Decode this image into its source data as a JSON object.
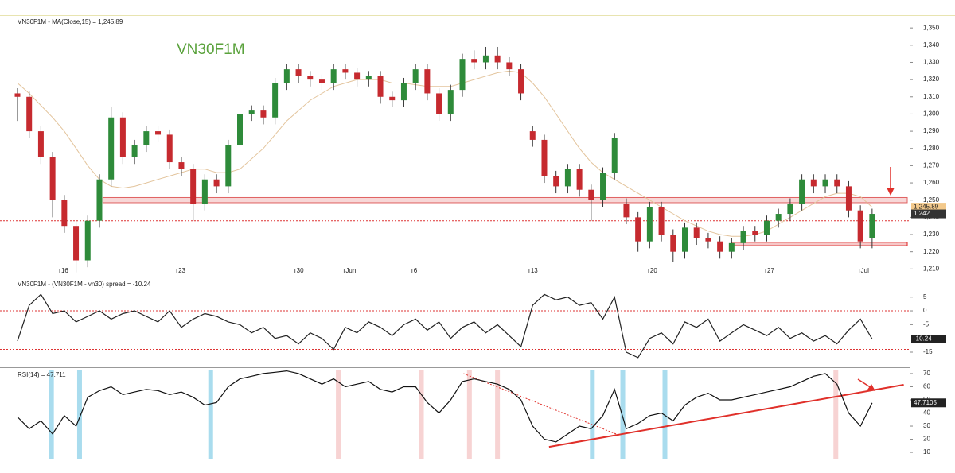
{
  "chart_data": [
    {
      "type": "candlestick",
      "title": "VN30F1M - MA(Close,15) = 1,245.89",
      "watermark": "VN30F1M",
      "up_color": "#2e8b3a",
      "down_color": "#c62a2f",
      "x": [
        0,
        1,
        2,
        3,
        4,
        5,
        6,
        7,
        8,
        9,
        10,
        11,
        12,
        13,
        14,
        15,
        16,
        17,
        18,
        19,
        20,
        21,
        22,
        23,
        24,
        25,
        26,
        27,
        28,
        29,
        30,
        31,
        32,
        33,
        34,
        35,
        36,
        37,
        38,
        39,
        40,
        41,
        42,
        43,
        44,
        45,
        46,
        47,
        48,
        49,
        50,
        51,
        52,
        53,
        54,
        55,
        56,
        57,
        58,
        59,
        60,
        61,
        62,
        63,
        64,
        65,
        66,
        67,
        68,
        69,
        70,
        71,
        72,
        73
      ],
      "open": [
        1312,
        1310,
        1290,
        1275,
        1250,
        1235,
        1215,
        1238,
        1262,
        1298,
        1275,
        1282,
        1290,
        1288,
        1272,
        1268,
        1248,
        1262,
        1258,
        1282,
        1300,
        1302,
        1298,
        1318,
        1326,
        1322,
        1320,
        1318,
        1326,
        1324,
        1320,
        1322,
        1310,
        1308,
        1318,
        1326,
        1312,
        1300,
        1314,
        1332,
        1330,
        1334,
        1330,
        1326,
        1290,
        1285,
        1264,
        1258,
        1268,
        1256,
        1250,
        1266,
        1248,
        1240,
        1226,
        1246,
        1230,
        1220,
        1234,
        1228,
        1226,
        1220,
        1225,
        1232,
        1230,
        1238,
        1242,
        1248,
        1262,
        1258,
        1262,
        1258,
        1244,
        1228
      ],
      "high": [
        1315,
        1313,
        1293,
        1278,
        1253,
        1238,
        1241,
        1265,
        1304,
        1301,
        1285,
        1293,
        1293,
        1291,
        1275,
        1271,
        1265,
        1265,
        1285,
        1303,
        1305,
        1305,
        1321,
        1329,
        1329,
        1325,
        1323,
        1329,
        1329,
        1327,
        1325,
        1325,
        1313,
        1321,
        1329,
        1329,
        1315,
        1317,
        1335,
        1337,
        1339,
        1339,
        1333,
        1329,
        1293,
        1288,
        1267,
        1271,
        1271,
        1259,
        1269,
        1289,
        1251,
        1243,
        1249,
        1249,
        1233,
        1237,
        1237,
        1231,
        1229,
        1228,
        1235,
        1235,
        1241,
        1245,
        1251,
        1265,
        1265,
        1265,
        1265,
        1261,
        1247,
        1245
      ],
      "low": [
        1296,
        1286,
        1271,
        1240,
        1231,
        1208,
        1211,
        1234,
        1258,
        1271,
        1271,
        1278,
        1284,
        1268,
        1264,
        1238,
        1244,
        1254,
        1254,
        1278,
        1296,
        1294,
        1294,
        1314,
        1318,
        1316,
        1314,
        1314,
        1320,
        1316,
        1316,
        1306,
        1304,
        1304,
        1314,
        1308,
        1296,
        1296,
        1310,
        1326,
        1326,
        1326,
        1322,
        1308,
        1281,
        1260,
        1254,
        1254,
        1252,
        1238,
        1246,
        1262,
        1236,
        1220,
        1222,
        1226,
        1214,
        1216,
        1224,
        1222,
        1216,
        1216,
        1221,
        1226,
        1226,
        1234,
        1238,
        1244,
        1254,
        1254,
        1254,
        1240,
        1222,
        1222
      ],
      "close": [
        1310,
        1290,
        1275,
        1250,
        1235,
        1215,
        1238,
        1262,
        1298,
        1275,
        1282,
        1290,
        1288,
        1272,
        1268,
        1248,
        1262,
        1258,
        1282,
        1300,
        1302,
        1298,
        1318,
        1326,
        1322,
        1320,
        1318,
        1326,
        1324,
        1320,
        1322,
        1310,
        1308,
        1318,
        1326,
        1312,
        1300,
        1314,
        1332,
        1330,
        1334,
        1330,
        1326,
        1312,
        1285,
        1264,
        1258,
        1268,
        1256,
        1250,
        1266,
        1286,
        1240,
        1226,
        1246,
        1230,
        1220,
        1234,
        1228,
        1226,
        1220,
        1225,
        1232,
        1230,
        1238,
        1242,
        1248,
        1262,
        1258,
        1262,
        1258,
        1244,
        1226,
        1242
      ],
      "series": [
        {
          "color": "#e3c49c",
          "values": [
            1318,
            1312,
            1305,
            1298,
            1290,
            1280,
            1270,
            1262,
            1258,
            1257,
            1258,
            1260,
            1262,
            1264,
            1266,
            1268,
            1268,
            1266,
            1266,
            1268,
            1274,
            1280,
            1288,
            1296,
            1302,
            1308,
            1312,
            1316,
            1318,
            1320,
            1320,
            1320,
            1318,
            1318,
            1317,
            1316,
            1316,
            1316,
            1318,
            1320,
            1322,
            1324,
            1325,
            1324,
            1318,
            1310,
            1300,
            1290,
            1280,
            1272,
            1266,
            1262,
            1258,
            1254,
            1250,
            1246,
            1242,
            1238,
            1235,
            1232,
            1230,
            1229,
            1229,
            1230,
            1232,
            1236,
            1240,
            1244,
            1248,
            1252,
            1254,
            1254,
            1252,
            1245.89
          ]
        }
      ],
      "xlim": [
        0,
        76
      ],
      "xticks": [
        {
          "value": 3.6,
          "label": "16"
        },
        {
          "value": 13.6,
          "label": "23"
        },
        {
          "value": 23.7,
          "label": "30"
        },
        {
          "value": 27.9,
          "label": "Jun"
        },
        {
          "value": 33.7,
          "label": "6"
        },
        {
          "value": 43.7,
          "label": "13"
        },
        {
          "value": 53.9,
          "label": "20"
        },
        {
          "value": 63.9,
          "label": "27"
        },
        {
          "value": 71.9,
          "label": "Jul"
        }
      ],
      "ylim": [
        1206,
        1357
      ],
      "yticks": [
        {
          "value": 1210,
          "label": "1,210"
        },
        {
          "value": 1220,
          "label": "1,220"
        },
        {
          "value": 1230,
          "label": "1,230"
        },
        {
          "value": 1240,
          "label": "1,240"
        },
        {
          "value": 1250,
          "label": "1,250"
        },
        {
          "value": 1260,
          "label": "1,260"
        },
        {
          "value": 1270,
          "label": "1,270"
        },
        {
          "value": 1280,
          "label": "1,280"
        },
        {
          "value": 1290,
          "label": "1,290"
        },
        {
          "value": 1300,
          "label": "1,300"
        },
        {
          "value": 1310,
          "label": "1,310"
        },
        {
          "value": 1320,
          "label": "1,320"
        },
        {
          "value": 1330,
          "label": "1,330"
        },
        {
          "value": 1340,
          "label": "1,340"
        },
        {
          "value": 1350,
          "label": "1,350"
        }
      ],
      "levels": [
        {
          "value": 1238,
          "color": "#d33"
        }
      ],
      "bands": [
        {
          "from": 1248.5,
          "to": 1251.5,
          "x_from": 7.3,
          "color": "#e06060"
        },
        {
          "from": 1223.5,
          "to": 1225.5,
          "x_from": 61,
          "color": "#d22"
        }
      ],
      "last_labels": [
        {
          "value": 1245.89,
          "label": "1,245.89",
          "color": "#f3c98b",
          "text_color": "#222"
        },
        {
          "value": 1242,
          "label": "1,242",
          "color": "#333",
          "text_color": "#fff"
        }
      ]
    },
    {
      "type": "line",
      "title": "VN30F1M - (VN30F1M - vn30) spread = -10.24",
      "x": [
        0,
        1,
        2,
        3,
        4,
        5,
        6,
        7,
        8,
        9,
        10,
        11,
        12,
        13,
        14,
        15,
        16,
        17,
        18,
        19,
        20,
        21,
        22,
        23,
        24,
        25,
        26,
        27,
        28,
        29,
        30,
        31,
        32,
        33,
        34,
        35,
        36,
        37,
        38,
        39,
        40,
        41,
        42,
        43,
        44,
        45,
        46,
        47,
        48,
        49,
        50,
        51,
        52,
        53,
        54,
        55,
        56,
        57,
        58,
        59,
        60,
        61,
        62,
        63,
        64,
        65,
        66,
        67,
        68,
        69,
        70,
        71,
        72,
        73
      ],
      "series": [
        {
          "color": "#222",
          "values": [
            -11,
            2,
            6,
            -1,
            0,
            -4,
            -2,
            0,
            -3,
            -1,
            0,
            -2,
            -4,
            0,
            -6,
            -3,
            -1,
            -2,
            -4,
            -5,
            -8,
            -6,
            -10,
            -9,
            -12,
            -8,
            -10,
            -14,
            -6,
            -8,
            -4,
            -6,
            -9,
            -5,
            -3,
            -7,
            -4,
            -10,
            -6,
            -4,
            -8,
            -5,
            -9,
            -13,
            2,
            6,
            4,
            5,
            2,
            3,
            -3,
            5,
            -15,
            -17,
            -10,
            -8,
            -12,
            -4,
            -6,
            -3,
            -11,
            -8,
            -5,
            -7,
            -9,
            -6,
            -10,
            -8,
            -11,
            -9,
            -12,
            -7,
            -3,
            -10.24
          ]
        }
      ],
      "xlim": [
        0,
        76
      ],
      "ylim": [
        -20.2,
        11.85
      ],
      "yticks": [
        5,
        0,
        -5,
        -15
      ],
      "levels": [
        {
          "value": 0,
          "color": "#d33"
        },
        {
          "value": -14,
          "color": "#d33"
        }
      ],
      "last_labels": [
        {
          "value": -10.24,
          "label": "-10.24",
          "color": "#222",
          "text_color": "#fff"
        }
      ]
    },
    {
      "type": "line",
      "title": "RSI(14) = 47.711",
      "x": [
        0,
        1,
        2,
        3,
        4,
        5,
        6,
        7,
        8,
        9,
        10,
        11,
        12,
        13,
        14,
        15,
        16,
        17,
        18,
        19,
        20,
        21,
        22,
        23,
        24,
        25,
        26,
        27,
        28,
        29,
        30,
        31,
        32,
        33,
        34,
        35,
        36,
        37,
        38,
        39,
        40,
        41,
        42,
        43,
        44,
        45,
        46,
        47,
        48,
        49,
        50,
        51,
        52,
        53,
        54,
        55,
        56,
        57,
        58,
        59,
        60,
        61,
        62,
        63,
        64,
        65,
        66,
        67,
        68,
        69,
        70,
        71,
        72,
        73
      ],
      "series": [
        {
          "color": "#111",
          "values": [
            37,
            28,
            34,
            24,
            38,
            30,
            52,
            57,
            60,
            54,
            56,
            58,
            57,
            54,
            56,
            52,
            46,
            48,
            60,
            66,
            68,
            70,
            71,
            72,
            70,
            66,
            62,
            66,
            60,
            62,
            64,
            58,
            56,
            60,
            60,
            48,
            40,
            50,
            64,
            66,
            64,
            62,
            58,
            50,
            30,
            20,
            18,
            24,
            30,
            28,
            38,
            58,
            28,
            32,
            38,
            40,
            34,
            46,
            52,
            55,
            50,
            50,
            52,
            54,
            56,
            58,
            60,
            64,
            68,
            70,
            62,
            40,
            30,
            47.7105
          ]
        }
      ],
      "xlim": [
        0,
        76
      ],
      "ylim": [
        5.2,
        73.6
      ],
      "yticks": [
        10,
        20,
        30,
        40,
        50,
        60,
        70
      ],
      "highlights": [
        {
          "x": 2.9,
          "color": "#a9dcee"
        },
        {
          "x": 5.3,
          "color": "#a9dcee"
        },
        {
          "x": 16.5,
          "color": "#a9dcee"
        },
        {
          "x": 27.4,
          "color": "#f7d3d3"
        },
        {
          "x": 34.5,
          "color": "#f7d3d3"
        },
        {
          "x": 38.6,
          "color": "#f7d3d3"
        },
        {
          "x": 41.0,
          "color": "#f7d3d3"
        },
        {
          "x": 49.1,
          "color": "#a9dcee"
        },
        {
          "x": 51.7,
          "color": "#a9dcee"
        },
        {
          "x": 55.3,
          "color": "#a9dcee"
        },
        {
          "x": 69.9,
          "color": "#f7d3d3"
        }
      ],
      "trendlines": [
        {
          "x": [
            45.4,
            75.7
          ],
          "y": [
            14.2,
            61.5
          ],
          "color": "#e0302a",
          "dash": false
        },
        {
          "x": [
            38.1,
            51.5
          ],
          "y": [
            70,
            22.7
          ],
          "color": "#e0302a",
          "dash": true
        }
      ],
      "last_labels": [
        {
          "value": 47.7105,
          "label": "47.7105",
          "color": "#222",
          "text_color": "#fff"
        }
      ]
    }
  ]
}
